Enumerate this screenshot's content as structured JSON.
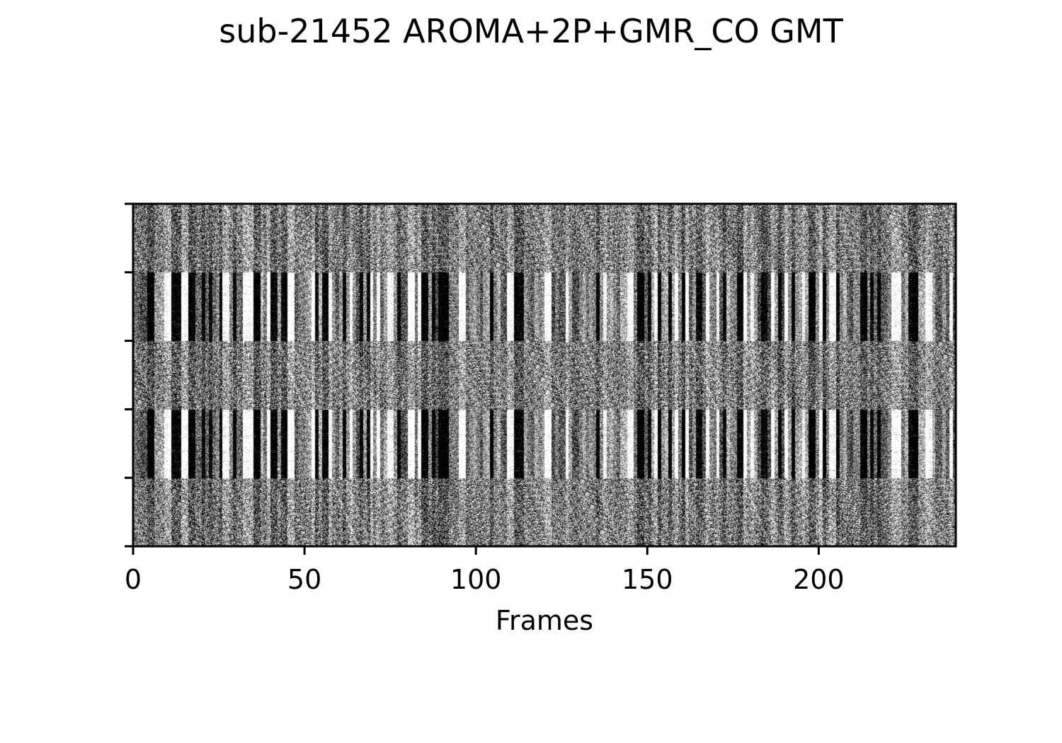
{
  "chart_data": {
    "type": "heatmap",
    "title": "sub-21452 AROMA+2P+GMR_CO GMT",
    "xlabel": "Frames",
    "ylabel": "",
    "xlim": [
      0,
      239
    ],
    "x_ticks": [
      0,
      50,
      100,
      150,
      200
    ],
    "x_tick_labels": [
      "0",
      "50",
      "100",
      "150",
      "200"
    ],
    "y_tick_count": 6,
    "y_tick_labels": [],
    "colormap": "gray",
    "grid": false,
    "legend": "none",
    "blocks": [
      {
        "name": "block-1",
        "strong_frame_pattern": false
      },
      {
        "name": "block-2",
        "strong_frame_pattern": true
      },
      {
        "name": "block-3",
        "strong_frame_pattern": false
      },
      {
        "name": "block-4",
        "strong_frame_pattern": true
      },
      {
        "name": "block-5",
        "strong_frame_pattern": false
      }
    ],
    "dark_frames": [
      4,
      5,
      11,
      12,
      13,
      16,
      17,
      20,
      22,
      25,
      29,
      35,
      36,
      40,
      41,
      43,
      44,
      53,
      55,
      56,
      61,
      66,
      68,
      77,
      84,
      85,
      87,
      89,
      90,
      91,
      104,
      111,
      112,
      113,
      135,
      147,
      148,
      150,
      153,
      156,
      160,
      164,
      165,
      172,
      176,
      177,
      183,
      184,
      188,
      192,
      197,
      198,
      201,
      205,
      212,
      213,
      215,
      217,
      226,
      227,
      228
    ],
    "light_frames": [
      9,
      10,
      14,
      15,
      26,
      27,
      32,
      33,
      34,
      39,
      45,
      46,
      52,
      57,
      63,
      69,
      71,
      74,
      75,
      80,
      81,
      83,
      95,
      96,
      109,
      110,
      120,
      121,
      126,
      137,
      144,
      145,
      152,
      158,
      161,
      167,
      170,
      178,
      180,
      186,
      190,
      195,
      200,
      203,
      204,
      221,
      222,
      223,
      231,
      232,
      238
    ]
  },
  "colors": {
    "background": "#ffffff",
    "axes": "#000000",
    "dark_band": "#000000",
    "light_band": "#ffffff"
  }
}
